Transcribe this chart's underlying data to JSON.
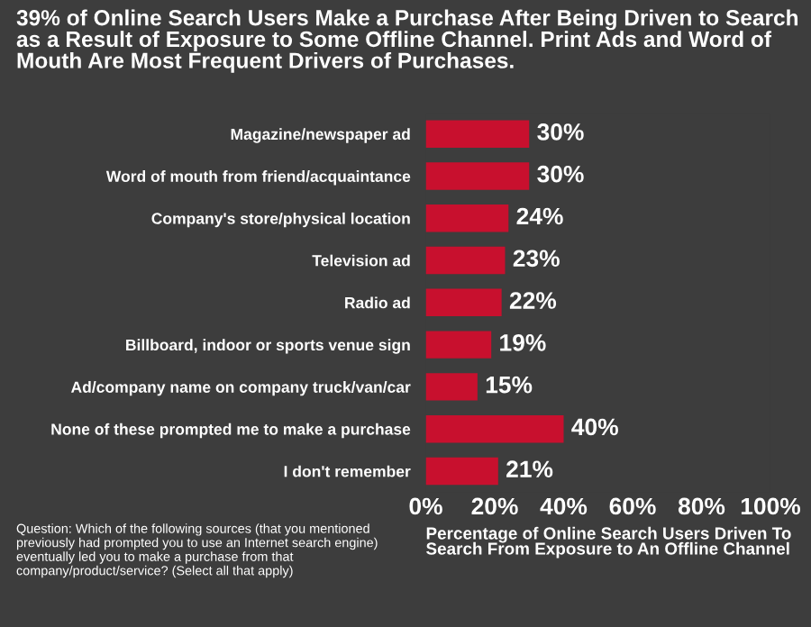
{
  "chart_data": {
    "type": "bar",
    "orientation": "horizontal",
    "title": "39% of Online Search Users Make a Purchase After Being Driven to Search\nas a Result of Exposure to Some Offline Channel. Print Ads and Word of\nMouth Are Most Frequent Drivers of Purchases.",
    "categories": [
      "Magazine/newspaper ad",
      "Word of mouth from friend/acquaintance",
      "Company's store/physical location",
      "Television ad",
      "Radio ad",
      "Billboard, indoor or sports venue sign",
      "Ad/company name on company truck/van/car",
      "None of these prompted me to make a purchase",
      "I don't remember"
    ],
    "values": [
      30,
      30,
      24,
      23,
      22,
      19,
      15,
      40,
      21
    ],
    "value_labels": [
      "30%",
      "30%",
      "24%",
      "23%",
      "22%",
      "19%",
      "15%",
      "40%",
      "21%"
    ],
    "color": "#c8102e",
    "xlim": [
      0,
      100
    ],
    "xticks": [
      {
        "value": 0,
        "label": "0%"
      },
      {
        "value": 20,
        "label": "20%"
      },
      {
        "value": 40,
        "label": "40%"
      },
      {
        "value": 60,
        "label": "60%"
      },
      {
        "value": 80,
        "label": "80%"
      },
      {
        "value": 100,
        "label": "100%"
      }
    ],
    "xlabel": "Percentage of Online Search Users Driven To\nSearch From Exposure to An Offline Channel",
    "annotations": [
      "Question: Which of the following sources (that you mentioned\npreviously had prompted you to use an Internet search engine)\neventually led you to make a purchase from that\ncompany/product/service? (Select all that apply)"
    ],
    "grid": false,
    "legend": false
  }
}
